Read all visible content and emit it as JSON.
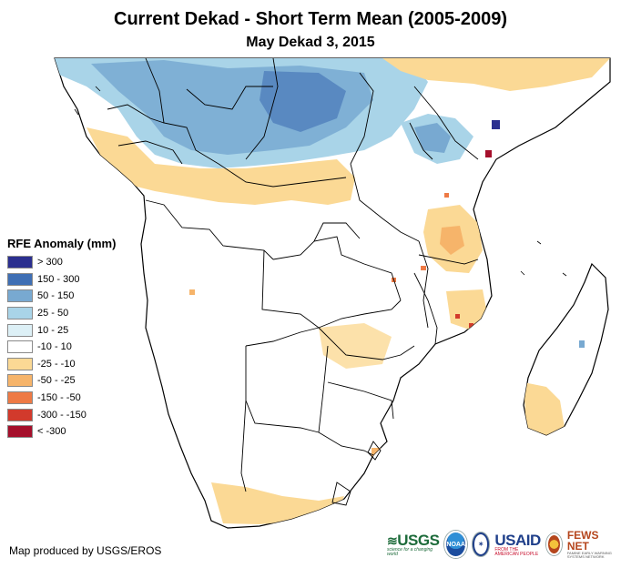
{
  "title": "Current Dekad - Short Term Mean (2005-2009)",
  "subtitle": "May Dekad 3, 2015",
  "legend": {
    "title": "RFE Anomaly (mm)",
    "items": [
      {
        "label": "> 300",
        "color": "#2b2f8f"
      },
      {
        "label": "150 - 300",
        "color": "#3f6fb4"
      },
      {
        "label": "50 - 150",
        "color": "#78a9d1"
      },
      {
        "label": "25 - 50",
        "color": "#a9d4e8"
      },
      {
        "label": "10 - 25",
        "color": "#ddf0f6"
      },
      {
        "label": "-10 - 10",
        "color": "#ffffff"
      },
      {
        "label": "-25 - -10",
        "color": "#fbd995"
      },
      {
        "label": "-50 - -25",
        "color": "#f6b46a"
      },
      {
        "label": "-150 - -50",
        "color": "#ee7a45"
      },
      {
        "label": "-300 - -150",
        "color": "#d23a2c"
      },
      {
        "label": "< -300",
        "color": "#a50f2b"
      }
    ]
  },
  "credit": "Map produced by USGS/EROS",
  "logos": {
    "usgs": {
      "name": "USGS",
      "tagline": "science for a changing world"
    },
    "noaa": {
      "name": "NOAA"
    },
    "usaid": {
      "name": "USAID",
      "tagline": "FROM THE AMERICAN PEOPLE"
    },
    "fews": {
      "name": "FEWS NET",
      "tagline": "FAMINE EARLY WARNING SYSTEMS NETWORK"
    }
  }
}
